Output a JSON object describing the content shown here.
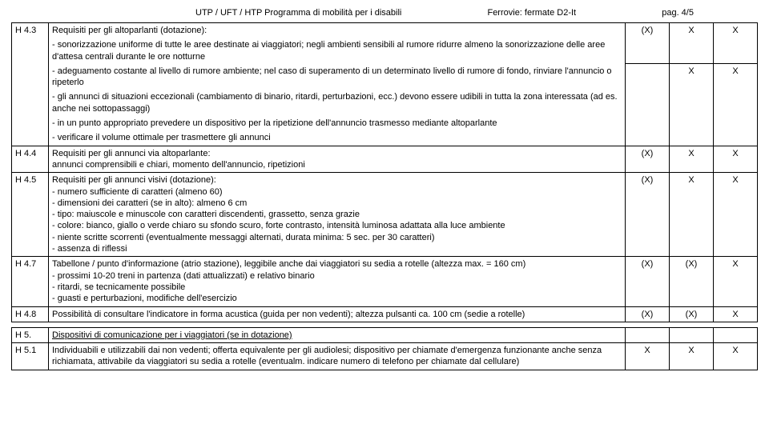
{
  "header": {
    "left": "UTP / UFT / HTP Programma di mobilità per i disabili",
    "center": "Ferrovie: fermate D2-It",
    "right": "pag. 4/5"
  },
  "rows": [
    {
      "id": "H 4.3",
      "text": "Requisiti per gli altoparlanti (dotazione):",
      "m": [
        "",
        "",
        ""
      ]
    },
    {
      "id": "",
      "text": "-  sonorizzazione uniforme di tutte le aree destinate ai viaggiatori; negli ambienti sensibili al rumore ridurre almeno la sonorizzazione delle aree d'attesa centrali durante le ore notturne",
      "m": [
        "(X)",
        "X",
        "X"
      ]
    },
    {
      "id": "",
      "text": "-  adeguamento costante al livello di rumore ambiente; nel caso di superamento di un determinato livello di rumore di fondo, rinviare l'annuncio o ripeterlo",
      "m": [
        "",
        "X",
        "X"
      ]
    },
    {
      "id": "",
      "text": "-  gli annunci di situazioni eccezionali (cambiamento di binario, ritardi, perturbazioni, ecc.) devono essere udibili in tutta la zona interessata (ad es. anche nei sottopassaggi)",
      "m": [
        "",
        "",
        ""
      ]
    },
    {
      "id": "",
      "text": "-  in un punto appropriato prevedere un dispositivo per la ripetizione dell'annuncio trasmesso mediante altoparlante",
      "m": [
        "",
        "",
        ""
      ]
    },
    {
      "id": "",
      "text": "-  verificare il volume ottimale per trasmettere gli annunci",
      "m": [
        "",
        "",
        ""
      ]
    }
  ],
  "h44": {
    "id": "H 4.4",
    "line1": "Requisiti per gli annunci via altoparlante:",
    "line2": "annunci comprensibili e chiari, momento dell'annuncio, ripetizioni",
    "m": [
      "(X)",
      "X",
      "X"
    ]
  },
  "h45": {
    "id": "H 4.5",
    "title": "Requisiti per gli annunci visivi (dotazione):",
    "items": [
      "- numero sufficiente di caratteri (almeno 60)",
      "- dimensioni dei caratteri (se in alto): almeno 6 cm",
      "- tipo: maiuscole e minuscole con caratteri discendenti, grassetto, senza grazie",
      "- colore: bianco, giallo o verde chiaro su sfondo scuro, forte contrasto, intensità luminosa adattata alla luce ambiente",
      "- niente scritte scorrenti (eventualmente messaggi alternati, durata minima: 5 sec. per 30 caratteri)",
      "- assenza di riflessi"
    ],
    "m": [
      "(X)",
      "X",
      "X"
    ]
  },
  "h47": {
    "id": "H 4.7",
    "title": "Tabellone / punto d'informazione (atrio stazione), leggibile anche dai viaggiatori su sedia a rotelle (altezza max. = 160 cm)",
    "items": [
      "-   prossimi 10-20 treni in partenza (dati attualizzati) e relativo binario",
      "-   ritardi, se tecnicamente possibile",
      "-   guasti e perturbazioni, modifiche dell'esercizio"
    ],
    "m": [
      "(X)",
      "(X)",
      "X"
    ]
  },
  "h48": {
    "id": "H 4.8",
    "text": "Possibilità di consultare l'indicatore in forma acustica (guida per non vedenti); altezza pulsanti ca. 100 cm (sedie a rotelle)",
    "m": [
      "(X)",
      "(X)",
      "X"
    ]
  },
  "h5": {
    "id": "H 5.",
    "title": "Dispositivi di comunicazione per i viaggiatori (se in dotazione)"
  },
  "h51": {
    "id": "H 5.1",
    "text": "Individuabili e utilizzabili dai non vedenti; offerta equivalente per gli audiolesi; dispositivo per chiamate d'emergenza funzionante anche senza richiamata, attivabile da viaggiatori su sedia a rotelle (eventualm. indicare numero di telefono per chiamate dal cellulare)",
    "m": [
      "X",
      "X",
      "X"
    ]
  }
}
